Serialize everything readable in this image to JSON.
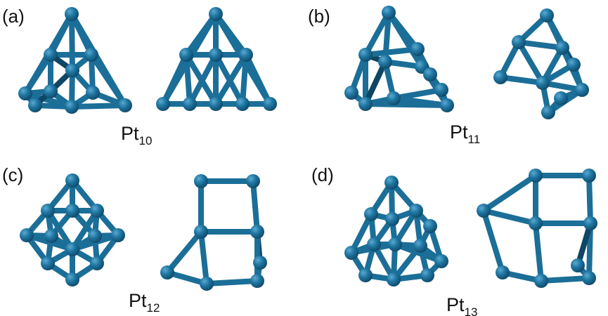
{
  "theme": {
    "bond_color": "#1b6e97",
    "bond_shadow_color": "#0e4663",
    "atom_color": "#1f76a2",
    "atom_highlight": "#5aa9cf",
    "atom_shadow": "#0d4563",
    "background": "#ffffff"
  },
  "panels": [
    {
      "id": "a",
      "label": "(a)",
      "element": "Pt",
      "subscript": "10"
    },
    {
      "id": "b",
      "label": "(b)",
      "element": "Pt",
      "subscript": "11"
    },
    {
      "id": "c",
      "label": "(c)",
      "element": "Pt",
      "subscript": "12"
    },
    {
      "id": "d",
      "label": "(d)",
      "element": "Pt",
      "subscript": "13"
    }
  ]
}
